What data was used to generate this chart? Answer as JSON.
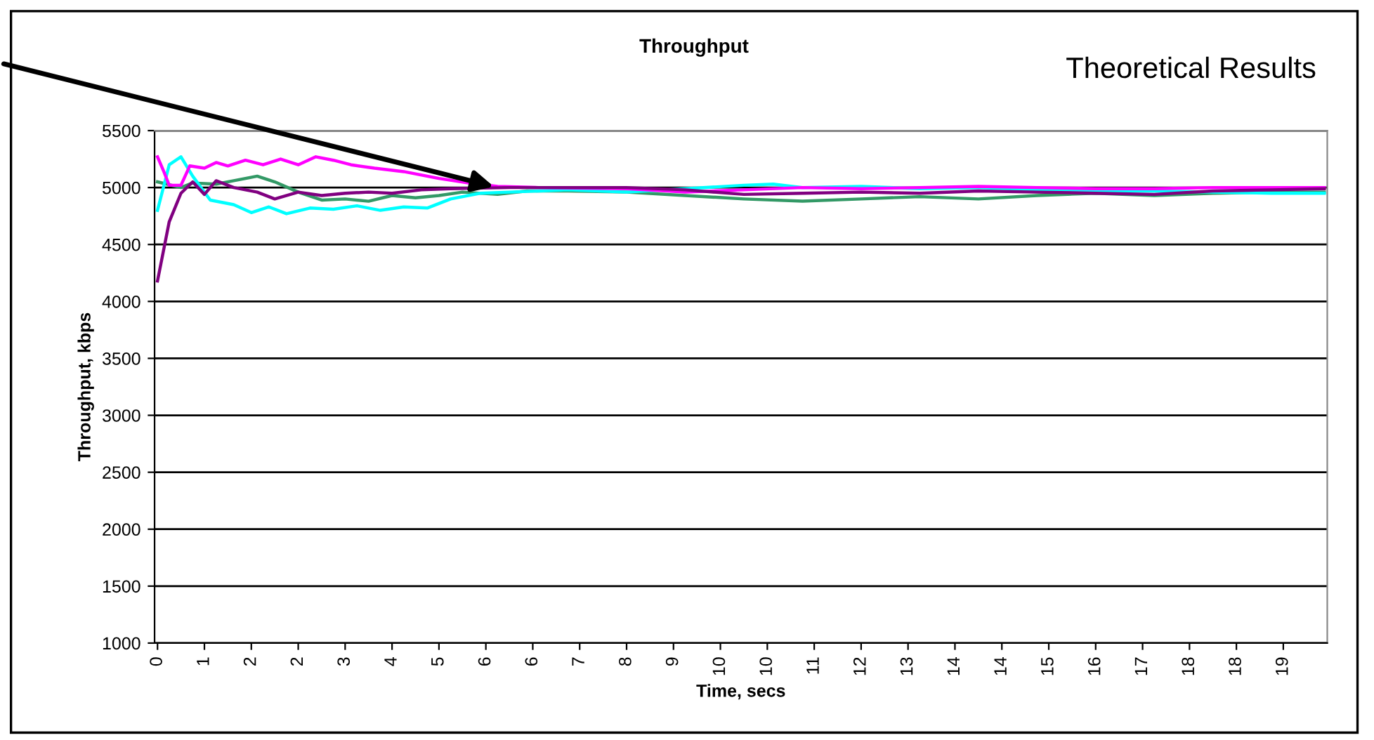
{
  "chart_data": {
    "type": "line",
    "title": "Throughput",
    "xlabel": "Time, secs",
    "ylabel": "Throughput, kbps",
    "annotations": [
      "Theoretical Results"
    ],
    "series": [
      {
        "color": "#339966",
        "x": [
          0,
          0.4,
          0.6,
          1.0,
          1.3,
          1.7,
          2.0,
          2.4,
          2.8,
          3.2,
          3.6,
          4.0,
          4.4,
          4.8,
          5.2,
          5.8,
          6.3,
          7,
          8,
          9,
          10,
          11,
          12,
          13,
          14,
          15,
          16,
          17,
          18,
          19,
          19.9
        ],
        "values": [
          5050,
          5000,
          5040,
          5030,
          5060,
          5100,
          5050,
          4960,
          4890,
          4900,
          4880,
          4930,
          4910,
          4930,
          4960,
          4940,
          4970,
          4970,
          4960,
          4930,
          4900,
          4880,
          4900,
          4920,
          4900,
          4930,
          4950,
          4930,
          4950,
          4960,
          4960
        ]
      },
      {
        "color": "#00ffff",
        "x": [
          0,
          0.2,
          0.4,
          0.6,
          0.9,
          1.3,
          1.6,
          1.9,
          2.2,
          2.6,
          3.0,
          3.4,
          3.8,
          4.2,
          4.6,
          5.0,
          5.5,
          6.0,
          7,
          8,
          9,
          10,
          10.5,
          11,
          12,
          13,
          14,
          15,
          16,
          17,
          18,
          19,
          19.9
        ],
        "values": [
          4800,
          5200,
          5270,
          5100,
          4890,
          4850,
          4780,
          4830,
          4770,
          4820,
          4810,
          4840,
          4800,
          4830,
          4820,
          4900,
          4950,
          4960,
          4980,
          4960,
          4990,
          5020,
          5030,
          5000,
          5010,
          4990,
          5000,
          4980,
          4970,
          4970,
          4960,
          4950,
          4950
        ]
      },
      {
        "color": "#ff00ff",
        "x": [
          0,
          0.1,
          0.2,
          0.4,
          0.55,
          0.8,
          1.0,
          1.2,
          1.5,
          1.8,
          2.1,
          2.4,
          2.7,
          3.0,
          3.3,
          3.7,
          4.2,
          4.8,
          5.3,
          5.8,
          6.5,
          8,
          9,
          10,
          11,
          12,
          13,
          14,
          15,
          16,
          17,
          18,
          19,
          19.9
        ],
        "values": [
          5270,
          5150,
          5020,
          5020,
          5190,
          5170,
          5220,
          5190,
          5240,
          5200,
          5250,
          5200,
          5270,
          5240,
          5200,
          5170,
          5140,
          5080,
          5040,
          5010,
          5000,
          4990,
          4960,
          4980,
          5000,
          4990,
          5000,
          5010,
          5000,
          4990,
          4990,
          5000,
          5000,
          5000
        ]
      },
      {
        "color": "#800080",
        "x": [
          0,
          0.2,
          0.4,
          0.6,
          0.8,
          1.0,
          1.3,
          1.7,
          2.0,
          2.4,
          2.8,
          3.2,
          3.6,
          4.0,
          4.5,
          5,
          6,
          7,
          8,
          9,
          10,
          11,
          12,
          13,
          14,
          15,
          16,
          17,
          18,
          19,
          19.9
        ],
        "values": [
          4180,
          4700,
          4950,
          5050,
          4940,
          5060,
          5000,
          4960,
          4900,
          4960,
          4930,
          4950,
          4960,
          4950,
          4980,
          4990,
          5000,
          5000,
          5000,
          4980,
          4940,
          4950,
          4960,
          4950,
          4970,
          4960,
          4950,
          4940,
          4970,
          4980,
          4990
        ]
      }
    ],
    "xlim": [
      -0.05,
      19.95
    ],
    "xticks": [
      {
        "value": 0,
        "label": "0"
      },
      {
        "value": 0.8,
        "label": "1"
      },
      {
        "value": 1.6,
        "label": "2"
      },
      {
        "value": 2.4,
        "label": "2"
      },
      {
        "value": 3.2,
        "label": "3"
      },
      {
        "value": 4.0,
        "label": "4"
      },
      {
        "value": 4.8,
        "label": "5"
      },
      {
        "value": 5.6,
        "label": "6"
      },
      {
        "value": 6.4,
        "label": "6"
      },
      {
        "value": 7.2,
        "label": "7"
      },
      {
        "value": 8.0,
        "label": "8"
      },
      {
        "value": 8.8,
        "label": "9"
      },
      {
        "value": 9.6,
        "label": "10"
      },
      {
        "value": 10.4,
        "label": "10"
      },
      {
        "value": 11.2,
        "label": "11"
      },
      {
        "value": 12.0,
        "label": "12"
      },
      {
        "value": 12.8,
        "label": "13"
      },
      {
        "value": 13.6,
        "label": "14"
      },
      {
        "value": 14.4,
        "label": "14"
      },
      {
        "value": 15.2,
        "label": "15"
      },
      {
        "value": 16.0,
        "label": "16"
      },
      {
        "value": 16.8,
        "label": "17"
      },
      {
        "value": 17.6,
        "label": "18"
      },
      {
        "value": 18.4,
        "label": "18"
      },
      {
        "value": 19.2,
        "label": "19"
      }
    ],
    "ylim": [
      1000,
      5500
    ],
    "yticks": [
      1000,
      1500,
      2000,
      2500,
      3000,
      3500,
      4000,
      4500,
      5000,
      5500
    ],
    "grid": "y",
    "marker": "none",
    "line_style": "solid",
    "legend": false
  }
}
